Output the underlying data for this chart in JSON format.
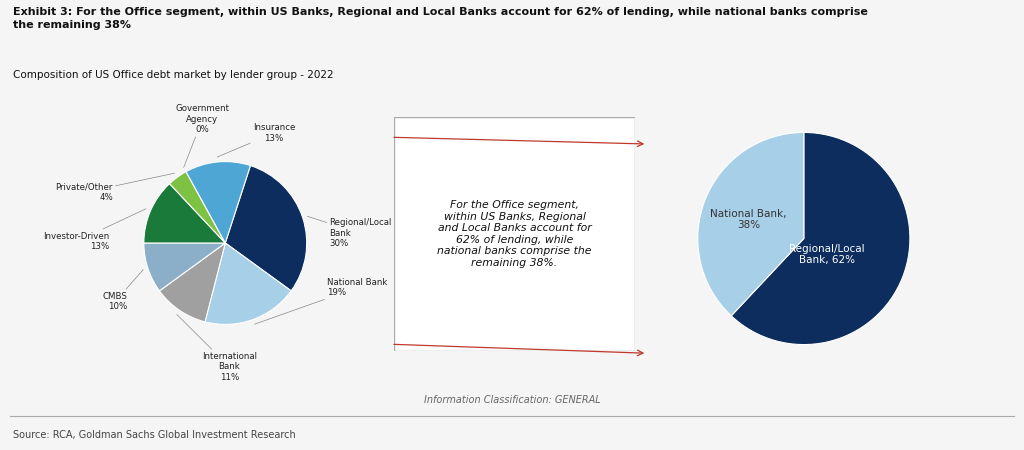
{
  "title_bold": "Exhibit 3: For the Office segment, within US Banks, Regional and Local Banks account for 62% of lending, while national banks comprise\nthe remaining 38%",
  "subtitle": "Composition of US Office debt market by lender group - 2022",
  "source": "Source: RCA, Goldman Sachs Global Investment Research",
  "footnote": "Information Classification: GENERAL",
  "pie1_labels": [
    "Regional/Local\nBank",
    "National Bank",
    "International\nBank",
    "CMBS",
    "Investor-Driven",
    "Private/Other",
    "Government\nAgency",
    "Insurance"
  ],
  "pie1_values": [
    30,
    19,
    11,
    10,
    13,
    4,
    0,
    13
  ],
  "pie1_colors": [
    "#0d2d5e",
    "#a8cfe8",
    "#a0a0a0",
    "#8bafc8",
    "#1a7a3a",
    "#7dc243",
    "#d3d3d3",
    "#4da6d4"
  ],
  "pie1_label_pcts": [
    "30%",
    "19%",
    "11%",
    "10%",
    "13%",
    "4%",
    "0%",
    "13%"
  ],
  "pie2_values": [
    62,
    38
  ],
  "pie2_colors": [
    "#0d2d5e",
    "#a8cfe8"
  ],
  "text_box": "For the Office segment,\nwithin US Banks, Regional\nand Local Banks account for\n62% of lending, while\nnational banks comprise the\nremaining 38%.",
  "background_color": "#f5f5f5"
}
